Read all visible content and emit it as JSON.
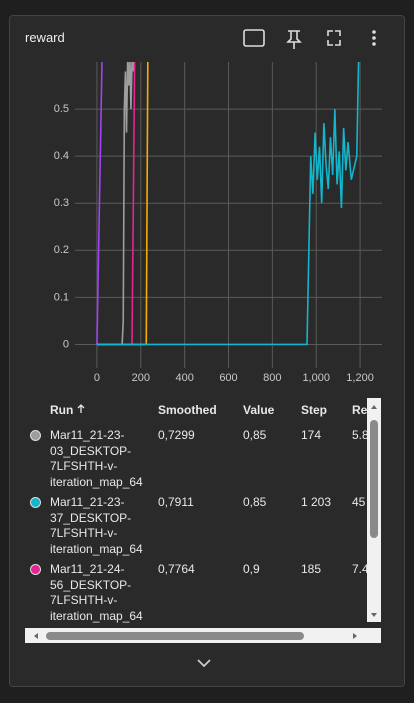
{
  "card": {
    "title": "reward"
  },
  "chart_data": {
    "type": "line",
    "xlim": [
      -100,
      1300
    ],
    "ylim": [
      -0.05,
      0.6
    ],
    "xticks": [
      0,
      200,
      400,
      600,
      800,
      {
        "value": 1000,
        "label": "1,000"
      },
      {
        "value": 1200,
        "label": "1,200"
      }
    ],
    "yticks": [
      0,
      0.1,
      0.2,
      0.3,
      0.4,
      0.5
    ],
    "grid": true,
    "series": [
      {
        "color": "#a142f4",
        "x": [
          0,
          23,
          40
        ],
        "values": [
          0,
          0.6,
          0.9
        ]
      },
      {
        "color": "#9e9e9e",
        "x": [
          0,
          115,
          120,
          125,
          130,
          135,
          140,
          145,
          150,
          155,
          160,
          165,
          170,
          174
        ],
        "values": [
          0,
          0,
          0.05,
          0.5,
          0.58,
          0.45,
          0.6,
          0.55,
          0.62,
          0.5,
          0.6,
          0.58,
          0.62,
          0.85
        ]
      },
      {
        "color": "#e52592",
        "x": [
          0,
          160,
          172,
          185
        ],
        "values": [
          0,
          0,
          0.6,
          0.9
        ]
      },
      {
        "color": "#f9ab00",
        "x": [
          0,
          225,
          232,
          240
        ],
        "values": [
          0,
          0,
          0.6,
          0.9
        ]
      },
      {
        "color": "#12b5cb",
        "x": [
          0,
          958,
          975,
          985,
          995,
          1005,
          1015,
          1025,
          1035,
          1045,
          1055,
          1065,
          1075,
          1085,
          1095,
          1105,
          1115,
          1125,
          1135,
          1145,
          1160,
          1185,
          1203
        ],
        "values": [
          0,
          0,
          0.4,
          0.32,
          0.45,
          0.35,
          0.42,
          0.3,
          0.47,
          0.38,
          0.33,
          0.44,
          0.36,
          0.5,
          0.34,
          0.41,
          0.29,
          0.46,
          0.37,
          0.43,
          0.35,
          0.4,
          0.85
        ]
      }
    ]
  },
  "table": {
    "columns": [
      "Run",
      "Smoothed",
      "Value",
      "Step",
      "Re"
    ],
    "rows": [
      {
        "color": "#9e9e9e",
        "cells": [
          "Mar11_21-23-03_DESKTOP-7LFSHTH-v-iteration_map_64",
          "0,7299",
          "0,85",
          "174",
          "5.8"
        ]
      },
      {
        "color": "#12b5cb",
        "cells": [
          "Mar11_21-23-37_DESKTOP-7LFSHTH-v-iteration_map_64",
          "0,7911",
          "0,85",
          "1 203",
          "45"
        ]
      },
      {
        "color": "#e52592",
        "cells": [
          "Mar11_21-24-56_DESKTOP-7LFSHTH-v-iteration_map_64",
          "0,7764",
          "0,9",
          "185",
          "7.4"
        ]
      }
    ]
  }
}
